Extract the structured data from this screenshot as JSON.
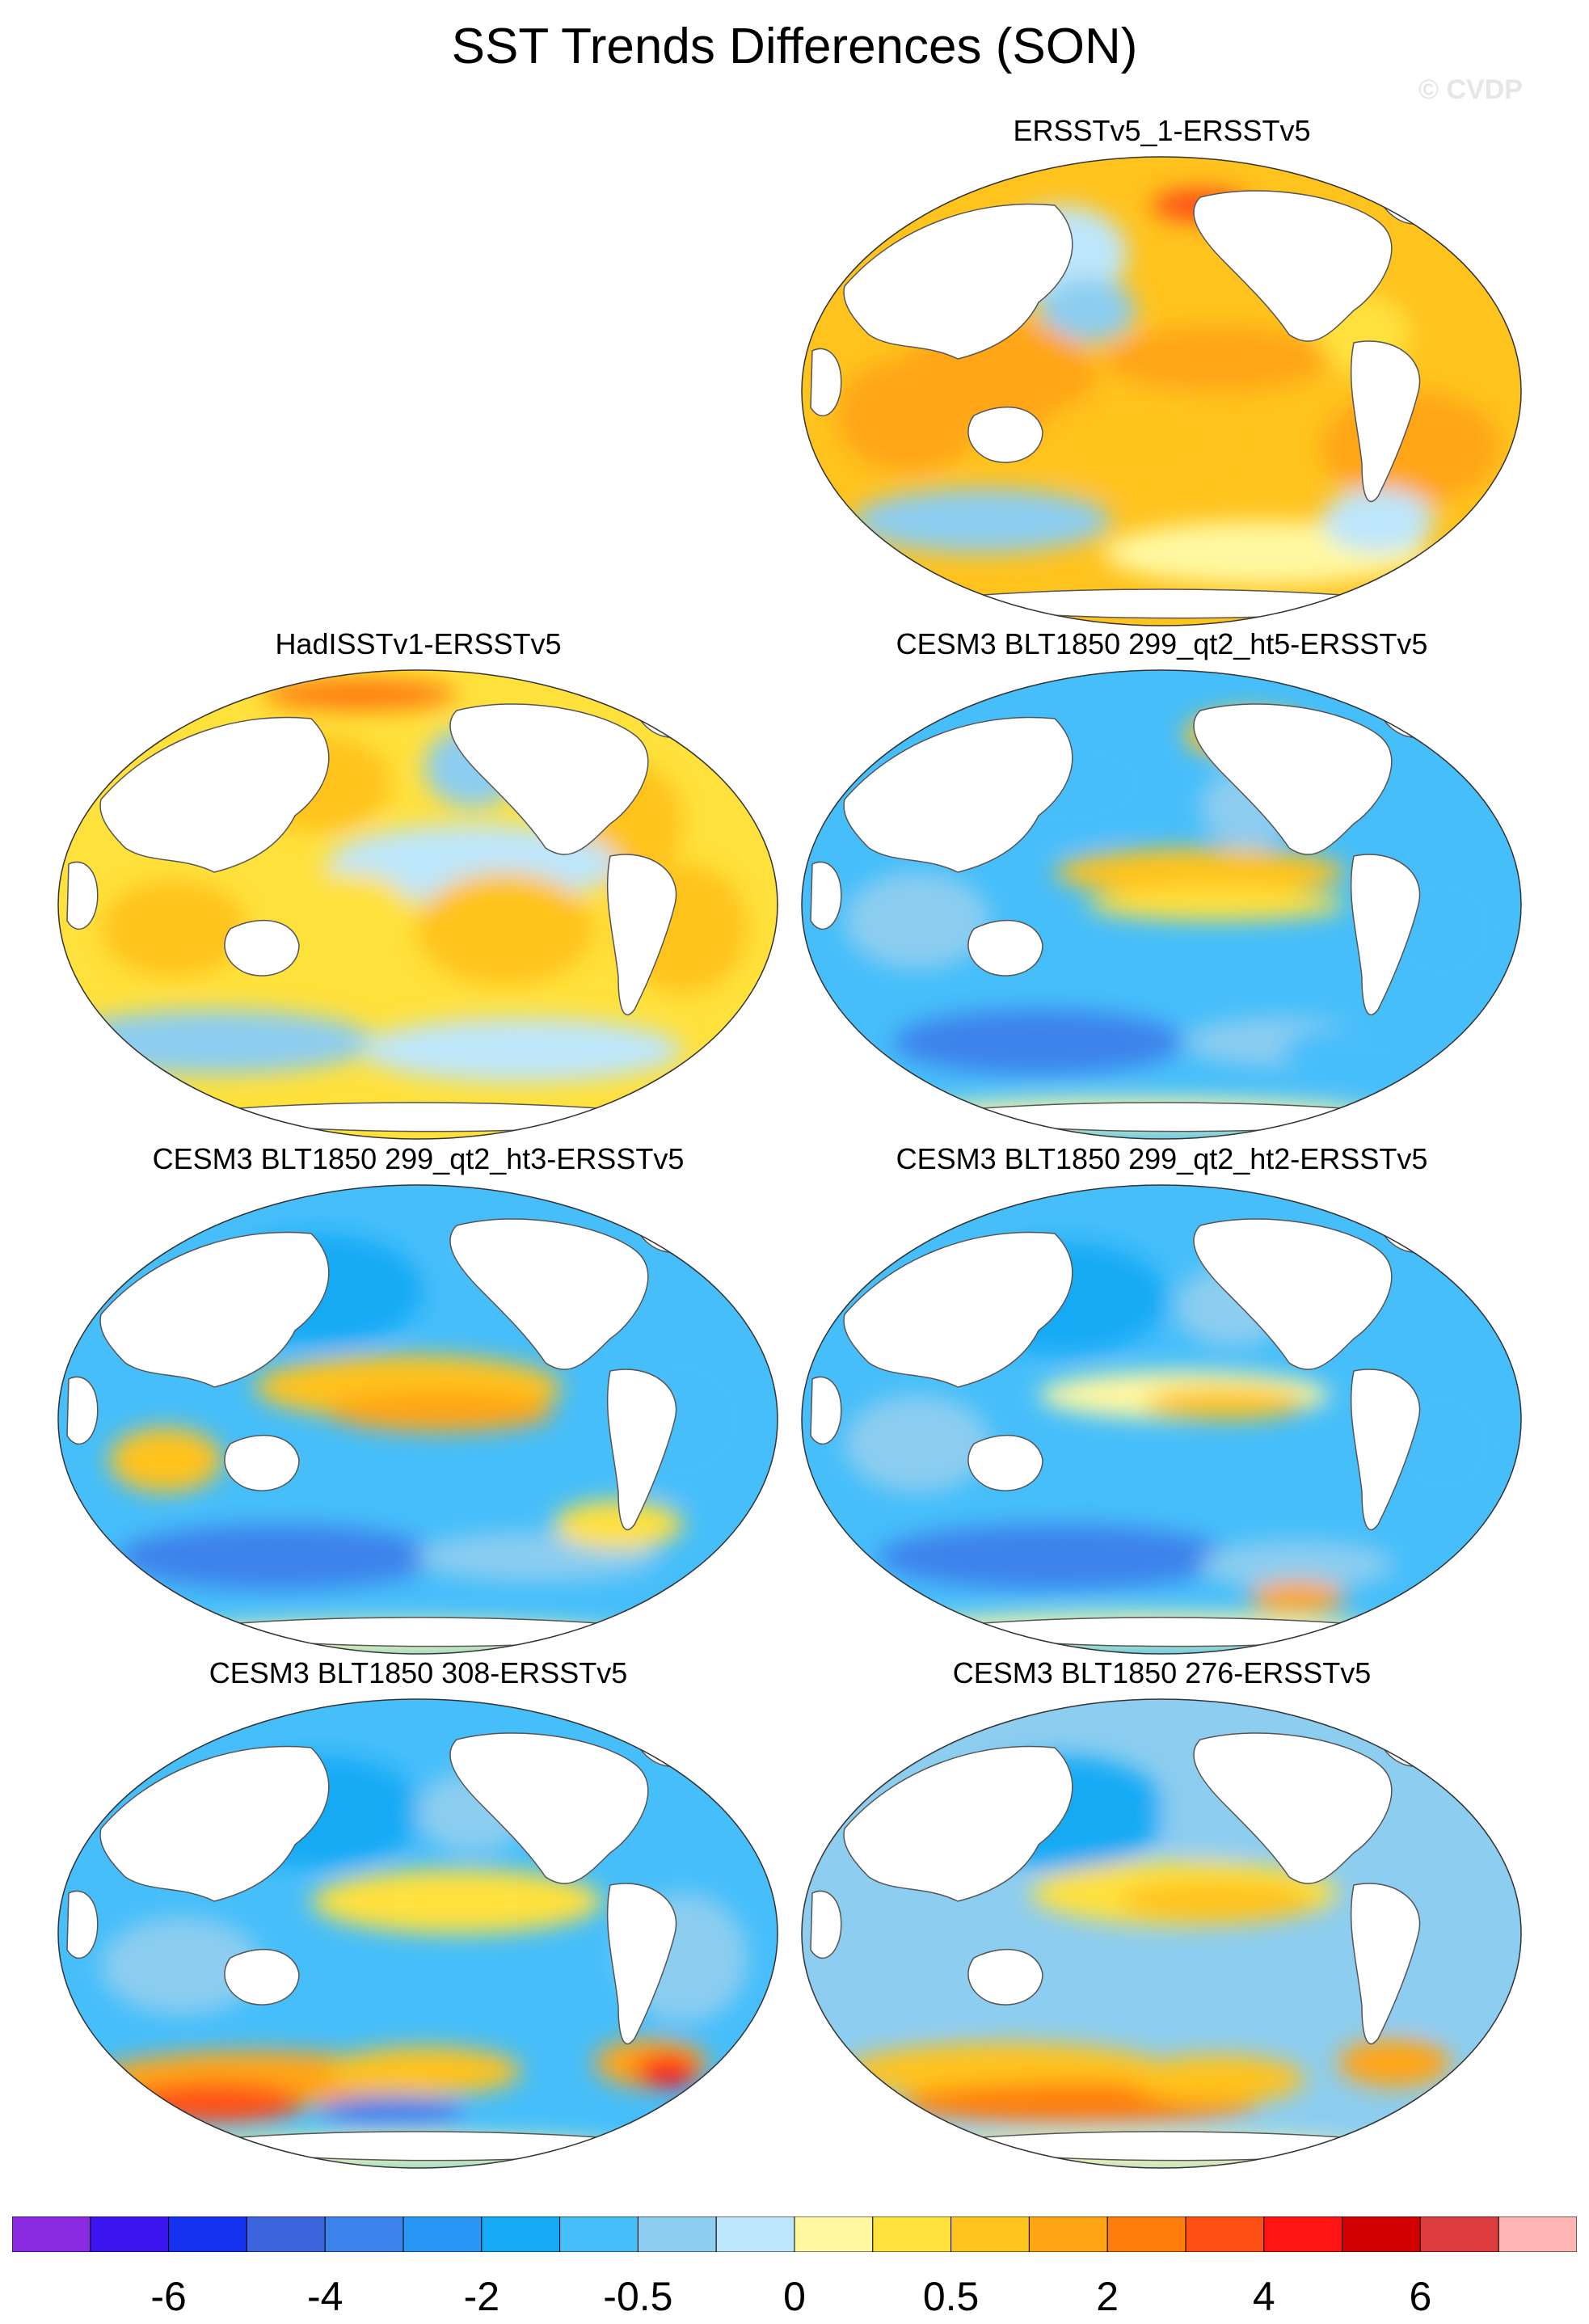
{
  "title": "SST Trends Differences (SON)",
  "credit": "© CVDP",
  "panels": [
    {
      "id": "p1",
      "title": "ERSSTv5_1-ERSSTv5",
      "pattern": "warm"
    },
    {
      "id": "p2",
      "title": "HadISSTv1-ERSSTv5",
      "pattern": "mixed-warm"
    },
    {
      "id": "p3",
      "title": "CESM3 BLT1850 299_qt2_ht5-ERSSTv5",
      "pattern": "cool-enso"
    },
    {
      "id": "p4",
      "title": "CESM3 BLT1850 299_qt2_ht3-ERSSTv5",
      "pattern": "cool-enso-strong"
    },
    {
      "id": "p5",
      "title": "CESM3 BLT1850 299_qt2_ht2-ERSSTv5",
      "pattern": "cool"
    },
    {
      "id": "p6",
      "title": "CESM3 BLT1850 308-ERSSTv5",
      "pattern": "cool-south-warm"
    },
    {
      "id": "p7",
      "title": "CESM3 BLT1850 276-ERSSTv5",
      "pattern": "cool-south-warm2"
    }
  ],
  "colorbar": {
    "colors": [
      "#8a2be2",
      "#3c14f0",
      "#1432f0",
      "#3c64dc",
      "#3c82eb",
      "#2896f5",
      "#14aaf5",
      "#46befa",
      "#8ccdf0",
      "#bee6fa",
      "#fff8a0",
      "#ffe13c",
      "#ffc31e",
      "#ffa514",
      "#ff7d0a",
      "#ff5014",
      "#ff1414",
      "#d20000",
      "#dc3c3c",
      "#ffb4b4"
    ],
    "labels": [
      "-6",
      "-4",
      "-2",
      "-0.5",
      "0",
      "0.5",
      "2",
      "4",
      "6"
    ]
  }
}
